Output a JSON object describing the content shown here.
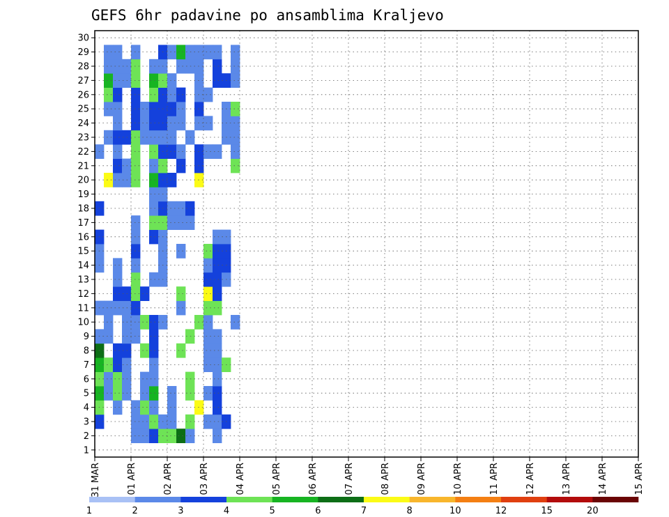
{
  "chart_data": {
    "type": "heatmap",
    "title": "GEFS 6hr padavine po ansamblima Kraljevo",
    "x_tick_labels": [
      "31 MAR",
      "01 APR",
      "02 APR",
      "03 APR",
      "04 APR",
      "05 APR",
      "06 APR",
      "07 APR",
      "08 APR",
      "09 APR",
      "10 APR",
      "11 APR",
      "12 APR",
      "13 APR",
      "14 APR",
      "15 APR"
    ],
    "y_tick_labels": [
      "1",
      "2",
      "3",
      "4",
      "5",
      "6",
      "7",
      "8",
      "9",
      "10",
      "11",
      "12",
      "13",
      "14",
      "15",
      "16",
      "17",
      "18",
      "19",
      "20",
      "21",
      "22",
      "23",
      "24",
      "25",
      "26",
      "27",
      "28",
      "29",
      "30"
    ],
    "x_range_days": [
      0,
      15
    ],
    "time_step_hours": 6,
    "members": 30,
    "grid": true,
    "legend_position": "bottom",
    "legend_boundaries": [
      "1",
      "2",
      "3",
      "4",
      "5",
      "6",
      "7",
      "8",
      "10",
      "12",
      "15",
      "20"
    ],
    "color_levels": [
      {
        "min": 1,
        "max": 2,
        "color": "#a9c1f5"
      },
      {
        "min": 2,
        "max": 3,
        "color": "#5b89e8"
      },
      {
        "min": 3,
        "max": 4,
        "color": "#1441dc"
      },
      {
        "min": 4,
        "max": 5,
        "color": "#6ee356"
      },
      {
        "min": 5,
        "max": 6,
        "color": "#17b422"
      },
      {
        "min": 6,
        "max": 7,
        "color": "#0d6e16"
      },
      {
        "min": 7,
        "max": 8,
        "color": "#fbfb16"
      },
      {
        "min": 8,
        "max": 10,
        "color": "#f8b62c"
      },
      {
        "min": 10,
        "max": 12,
        "color": "#f47f13"
      },
      {
        "min": 12,
        "max": 15,
        "color": "#e03f10"
      },
      {
        "min": 15,
        "max": 20,
        "color": "#b30c0c"
      },
      {
        "min": 20,
        "max": 25,
        "color": "#6a0505"
      }
    ],
    "cells": [
      [
        0,
        3,
        2
      ],
      [
        0,
        4,
        3
      ],
      [
        0,
        5,
        4
      ],
      [
        0,
        6,
        3
      ],
      [
        0,
        7,
        4
      ],
      [
        0,
        8,
        5
      ],
      [
        0,
        9,
        1
      ],
      [
        0,
        11,
        1
      ],
      [
        0,
        14,
        1
      ],
      [
        0,
        15,
        1
      ],
      [
        0,
        16,
        2
      ],
      [
        0,
        18,
        2
      ],
      [
        0,
        22,
        1
      ],
      [
        1,
        5,
        1
      ],
      [
        1,
        6,
        1
      ],
      [
        1,
        7,
        3
      ],
      [
        1,
        9,
        1
      ],
      [
        1,
        10,
        1
      ],
      [
        1,
        11,
        1
      ],
      [
        1,
        20,
        6
      ],
      [
        1,
        23,
        1
      ],
      [
        1,
        25,
        1
      ],
      [
        1,
        26,
        3
      ],
      [
        1,
        27,
        4
      ],
      [
        1,
        28,
        1
      ],
      [
        1,
        29,
        1
      ],
      [
        2,
        4,
        1
      ],
      [
        2,
        5,
        3
      ],
      [
        2,
        6,
        3
      ],
      [
        2,
        7,
        2
      ],
      [
        2,
        8,
        2
      ],
      [
        2,
        11,
        1
      ],
      [
        2,
        12,
        2
      ],
      [
        2,
        13,
        1
      ],
      [
        2,
        14,
        1
      ],
      [
        2,
        20,
        1
      ],
      [
        2,
        21,
        2
      ],
      [
        2,
        22,
        1
      ],
      [
        2,
        23,
        2
      ],
      [
        2,
        24,
        1
      ],
      [
        2,
        25,
        1
      ],
      [
        2,
        26,
        2
      ],
      [
        2,
        27,
        1
      ],
      [
        2,
        28,
        1
      ],
      [
        2,
        29,
        1
      ],
      [
        3,
        5,
        1
      ],
      [
        3,
        6,
        1
      ],
      [
        3,
        7,
        1
      ],
      [
        3,
        8,
        2
      ],
      [
        3,
        9,
        1
      ],
      [
        3,
        10,
        1
      ],
      [
        3,
        11,
        1
      ],
      [
        3,
        12,
        2
      ],
      [
        3,
        20,
        1
      ],
      [
        3,
        21,
        1
      ],
      [
        3,
        23,
        2
      ],
      [
        3,
        27,
        1
      ],
      [
        3,
        28,
        1
      ],
      [
        4,
        2,
        1
      ],
      [
        4,
        3,
        1
      ],
      [
        4,
        4,
        1
      ],
      [
        4,
        9,
        1
      ],
      [
        4,
        10,
        1
      ],
      [
        4,
        11,
        2
      ],
      [
        4,
        12,
        3
      ],
      [
        4,
        13,
        3
      ],
      [
        4,
        14,
        1
      ],
      [
        4,
        15,
        2
      ],
      [
        4,
        16,
        1
      ],
      [
        4,
        17,
        1
      ],
      [
        4,
        20,
        3
      ],
      [
        4,
        21,
        3
      ],
      [
        4,
        22,
        3
      ],
      [
        4,
        23,
        3
      ],
      [
        4,
        24,
        2
      ],
      [
        4,
        25,
        2
      ],
      [
        4,
        26,
        2
      ],
      [
        4,
        27,
        3
      ],
      [
        4,
        28,
        3
      ],
      [
        4,
        29,
        1
      ],
      [
        5,
        2,
        1
      ],
      [
        5,
        3,
        1
      ],
      [
        5,
        4,
        3
      ],
      [
        5,
        5,
        1
      ],
      [
        5,
        6,
        1
      ],
      [
        5,
        8,
        3
      ],
      [
        5,
        10,
        3
      ],
      [
        5,
        12,
        2
      ],
      [
        5,
        23,
        1
      ],
      [
        5,
        24,
        1
      ],
      [
        5,
        25,
        1
      ],
      [
        6,
        2,
        2
      ],
      [
        6,
        3,
        3
      ],
      [
        6,
        4,
        1
      ],
      [
        6,
        5,
        4
      ],
      [
        6,
        6,
        1
      ],
      [
        6,
        7,
        1
      ],
      [
        6,
        8,
        2
      ],
      [
        6,
        9,
        2
      ],
      [
        6,
        10,
        2
      ],
      [
        6,
        13,
        1
      ],
      [
        6,
        16,
        2
      ],
      [
        6,
        17,
        3
      ],
      [
        6,
        18,
        1
      ],
      [
        6,
        19,
        1
      ],
      [
        6,
        20,
        4
      ],
      [
        6,
        21,
        1
      ],
      [
        6,
        22,
        3
      ],
      [
        6,
        23,
        1
      ],
      [
        6,
        24,
        2
      ],
      [
        6,
        25,
        2
      ],
      [
        6,
        26,
        3
      ],
      [
        6,
        27,
        4
      ],
      [
        6,
        28,
        1
      ],
      [
        7,
        2,
        3
      ],
      [
        7,
        3,
        1
      ],
      [
        7,
        10,
        1
      ],
      [
        7,
        13,
        1
      ],
      [
        7,
        14,
        1
      ],
      [
        7,
        15,
        1
      ],
      [
        7,
        16,
        1
      ],
      [
        7,
        17,
        3
      ],
      [
        7,
        18,
        2
      ],
      [
        7,
        19,
        1
      ],
      [
        7,
        20,
        2
      ],
      [
        7,
        21,
        3
      ],
      [
        7,
        22,
        2
      ],
      [
        7,
        23,
        1
      ],
      [
        7,
        24,
        2
      ],
      [
        7,
        25,
        2
      ],
      [
        7,
        26,
        2
      ],
      [
        7,
        27,
        3
      ],
      [
        7,
        28,
        1
      ],
      [
        7,
        29,
        2
      ],
      [
        8,
        2,
        3
      ],
      [
        8,
        3,
        1
      ],
      [
        8,
        4,
        1
      ],
      [
        8,
        5,
        1
      ],
      [
        8,
        17,
        1
      ],
      [
        8,
        18,
        1
      ],
      [
        8,
        20,
        2
      ],
      [
        8,
        22,
        2
      ],
      [
        8,
        23,
        1
      ],
      [
        8,
        24,
        1
      ],
      [
        8,
        25,
        2
      ],
      [
        8,
        26,
        1
      ],
      [
        8,
        27,
        1
      ],
      [
        8,
        29,
        1
      ],
      [
        9,
        2,
        5
      ],
      [
        9,
        8,
        3
      ],
      [
        9,
        11,
        1
      ],
      [
        9,
        12,
        3
      ],
      [
        9,
        15,
        1
      ],
      [
        9,
        17,
        1
      ],
      [
        9,
        18,
        1
      ],
      [
        9,
        21,
        2
      ],
      [
        9,
        22,
        1
      ],
      [
        9,
        24,
        1
      ],
      [
        9,
        25,
        1
      ],
      [
        9,
        26,
        2
      ],
      [
        9,
        28,
        1
      ],
      [
        9,
        29,
        4
      ],
      [
        10,
        2,
        1
      ],
      [
        10,
        3,
        3
      ],
      [
        10,
        5,
        3
      ],
      [
        10,
        6,
        3
      ],
      [
        10,
        9,
        3
      ],
      [
        10,
        17,
        1
      ],
      [
        10,
        18,
        2
      ],
      [
        10,
        23,
        1
      ],
      [
        10,
        28,
        1
      ],
      [
        10,
        29,
        1
      ],
      [
        11,
        4,
        6
      ],
      [
        11,
        10,
        3
      ],
      [
        11,
        20,
        6
      ],
      [
        11,
        21,
        2
      ],
      [
        11,
        22,
        2
      ],
      [
        11,
        24,
        1
      ],
      [
        11,
        25,
        2
      ],
      [
        11,
        26,
        1
      ],
      [
        11,
        27,
        1
      ],
      [
        11,
        28,
        1
      ],
      [
        11,
        29,
        1
      ],
      [
        12,
        3,
        1
      ],
      [
        12,
        5,
        1
      ],
      [
        12,
        7,
        1
      ],
      [
        12,
        8,
        1
      ],
      [
        12,
        9,
        1
      ],
      [
        12,
        10,
        1
      ],
      [
        12,
        11,
        3
      ],
      [
        12,
        12,
        6
      ],
      [
        12,
        13,
        2
      ],
      [
        12,
        14,
        1
      ],
      [
        12,
        15,
        3
      ],
      [
        12,
        22,
        1
      ],
      [
        12,
        24,
        1
      ],
      [
        12,
        26,
        1
      ],
      [
        12,
        29,
        1
      ],
      [
        13,
        2,
        1
      ],
      [
        13,
        3,
        1
      ],
      [
        13,
        4,
        2
      ],
      [
        13,
        5,
        2
      ],
      [
        13,
        6,
        1
      ],
      [
        13,
        7,
        1
      ],
      [
        13,
        8,
        1
      ],
      [
        13,
        9,
        1
      ],
      [
        13,
        11,
        3
      ],
      [
        13,
        12,
        2
      ],
      [
        13,
        13,
        2
      ],
      [
        13,
        14,
        2
      ],
      [
        13,
        15,
        2
      ],
      [
        13,
        16,
        1
      ],
      [
        13,
        22,
        1
      ],
      [
        13,
        27,
        2
      ],
      [
        13,
        28,
        2
      ],
      [
        13,
        29,
        1
      ],
      [
        14,
        3,
        2
      ],
      [
        14,
        7,
        3
      ],
      [
        14,
        13,
        1
      ],
      [
        14,
        14,
        2
      ],
      [
        14,
        15,
        2
      ],
      [
        14,
        16,
        1
      ],
      [
        14,
        23,
        1
      ],
      [
        14,
        24,
        1
      ],
      [
        14,
        25,
        1
      ],
      [
        14,
        27,
        2
      ],
      [
        15,
        10,
        1
      ],
      [
        15,
        21,
        3
      ],
      [
        15,
        22,
        1
      ],
      [
        15,
        23,
        1
      ],
      [
        15,
        24,
        1
      ],
      [
        15,
        25,
        3
      ],
      [
        15,
        27,
        1
      ],
      [
        15,
        28,
        1
      ],
      [
        15,
        29,
        1
      ]
    ]
  }
}
